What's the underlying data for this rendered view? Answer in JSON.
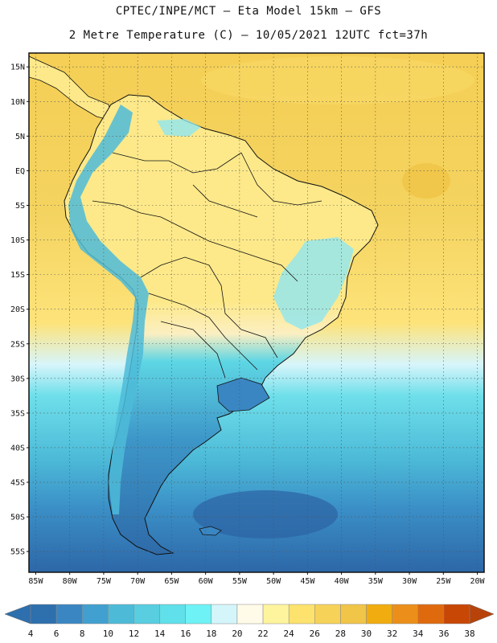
{
  "title_line1": "CPTEC/INPE/MCT –  Eta Model 15km – GFS",
  "title_line2": "2 Metre Temperature (C) – 10/05/2021 12UTC fct=37h",
  "map": {
    "lon_range": [
      -86,
      -19
    ],
    "lat_range": [
      -58,
      17
    ],
    "lat_ticks": [
      {
        "value": 15,
        "label": "15N"
      },
      {
        "value": 10,
        "label": "10N"
      },
      {
        "value": 5,
        "label": "5N"
      },
      {
        "value": 0,
        "label": "EQ"
      },
      {
        "value": -5,
        "label": "5S"
      },
      {
        "value": -10,
        "label": "10S"
      },
      {
        "value": -15,
        "label": "15S"
      },
      {
        "value": -20,
        "label": "20S"
      },
      {
        "value": -25,
        "label": "25S"
      },
      {
        "value": -30,
        "label": "30S"
      },
      {
        "value": -35,
        "label": "35S"
      },
      {
        "value": -40,
        "label": "40S"
      },
      {
        "value": -45,
        "label": "45S"
      },
      {
        "value": -50,
        "label": "50S"
      },
      {
        "value": -55,
        "label": "55S"
      }
    ],
    "lon_ticks": [
      {
        "value": -85,
        "label": "85W"
      },
      {
        "value": -80,
        "label": "80W"
      },
      {
        "value": -75,
        "label": "75W"
      },
      {
        "value": -70,
        "label": "70W"
      },
      {
        "value": -65,
        "label": "65W"
      },
      {
        "value": -60,
        "label": "60W"
      },
      {
        "value": -55,
        "label": "55W"
      },
      {
        "value": -50,
        "label": "50W"
      },
      {
        "value": -45,
        "label": "45W"
      },
      {
        "value": -40,
        "label": "40W"
      },
      {
        "value": -35,
        "label": "35W"
      },
      {
        "value": -30,
        "label": "30W"
      },
      {
        "value": -25,
        "label": "25W"
      },
      {
        "value": -20,
        "label": "20W"
      }
    ],
    "grid": "dotted"
  },
  "colorbar": {
    "labels": [
      "4",
      "6",
      "8",
      "10",
      "12",
      "14",
      "16",
      "18",
      "20",
      "22",
      "24",
      "26",
      "28",
      "30",
      "32",
      "34",
      "36",
      "38"
    ],
    "colors": [
      "#2e6fad",
      "#3a86c2",
      "#41a0cf",
      "#4dbbd8",
      "#58cee0",
      "#5fe0ea",
      "#6ef2f6",
      "#d4f6fb",
      "#fffbe8",
      "#fff49e",
      "#fde36e",
      "#f7d259",
      "#f0c548",
      "#f1ad0f",
      "#eb8f1a",
      "#df6a0e",
      "#c84705"
    ],
    "low_arrow_color": "#2e6fad",
    "high_arrow_color": "#b8430a"
  }
}
